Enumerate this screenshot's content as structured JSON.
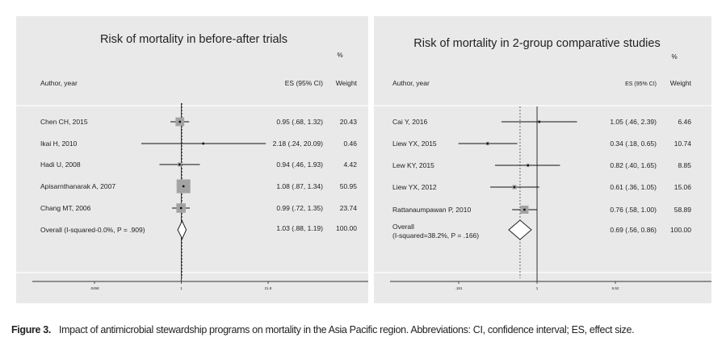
{
  "caption": {
    "label": "Figure 3.",
    "text": "Impact of antimicrobial stewardship programs on mortality in the Asia Pacific region. Abbreviations: CI, confidence interval; ES, effect size."
  },
  "chart_data": [
    {
      "type": "forest",
      "title": "Risk of mortality in before-after trials",
      "columns": {
        "study": "Author, year",
        "es": "ES (95% CI)",
        "weight": "Weight",
        "pct": "%"
      },
      "axis": {
        "scale": "log",
        "ticks": [
          ".0458",
          "1",
          "21.8"
        ],
        "tick_values": [
          0.0458,
          1,
          21.8
        ],
        "null_line": 1
      },
      "studies": [
        {
          "label": "Chen CH, 2015",
          "es": 0.95,
          "lo": 0.68,
          "hi": 1.32,
          "es_text": "0.95 (.68, 1.32)",
          "weight": 20.43,
          "weight_text": "20.43"
        },
        {
          "label": "Ikai H, 2010",
          "es": 2.18,
          "lo": 0.24,
          "hi": 20.09,
          "es_text": "2.18 (.24, 20.09)",
          "weight": 0.46,
          "weight_text": "0.46"
        },
        {
          "label": "Hadi U, 2008",
          "es": 0.94,
          "lo": 0.46,
          "hi": 1.93,
          "es_text": "0.94 (.46, 1.93)",
          "weight": 4.42,
          "weight_text": "4.42"
        },
        {
          "label": "Apisarnthanarak A, 2007",
          "es": 1.08,
          "lo": 0.87,
          "hi": 1.34,
          "es_text": "1.08 (.87, 1.34)",
          "weight": 50.95,
          "weight_text": "50.95"
        },
        {
          "label": "Chang MT, 2006",
          "es": 0.99,
          "lo": 0.72,
          "hi": 1.35,
          "es_text": "0.99 (.72, 1.35)",
          "weight": 23.74,
          "weight_text": "23.74"
        }
      ],
      "overall": {
        "label": "Overall (I-squared-0.0%, P = .909)",
        "label_lines": [
          "Overall (I-squared-0.0%, P = .909)"
        ],
        "es": 1.03,
        "lo": 0.88,
        "hi": 1.19,
        "es_text": "1.03 (.88, 1.19)",
        "weight_text": "100.00"
      }
    },
    {
      "type": "forest",
      "title": "Risk of mortality in 2-group comparative studies",
      "columns": {
        "study": "Author, year",
        "es": "ES (95% CI)",
        "weight": "Weight",
        "pct": "%"
      },
      "axis": {
        "scale": "log",
        "ticks": [
          ".181",
          "1",
          "5.52"
        ],
        "tick_values": [
          0.181,
          1,
          5.52
        ],
        "null_line": 1
      },
      "studies": [
        {
          "label": "Cai Y, 2016",
          "es": 1.05,
          "lo": 0.46,
          "hi": 2.39,
          "es_text": "1.05 (.46, 2.39)",
          "weight": 6.46,
          "weight_text": "6.46"
        },
        {
          "label": "Liew YX, 2015",
          "es": 0.34,
          "lo": 0.18,
          "hi": 0.65,
          "es_text": "0.34 (.18, 0.65)",
          "weight": 10.74,
          "weight_text": "10.74"
        },
        {
          "label": "Lew KY, 2015",
          "es": 0.82,
          "lo": 0.4,
          "hi": 1.65,
          "es_text": "0.82 (.40, 1.65)",
          "weight": 8.85,
          "weight_text": "8.85"
        },
        {
          "label": "Liew YX, 2012",
          "es": 0.61,
          "lo": 0.36,
          "hi": 1.05,
          "es_text": "0.61 (.36, 1.05)",
          "weight": 15.06,
          "weight_text": "15.06"
        },
        {
          "label": "Rattanaumpawan P, 2010",
          "es": 0.76,
          "lo": 0.58,
          "hi": 1.0,
          "es_text": "0.76 (.58, 1.00)",
          "weight": 58.89,
          "weight_text": "58.89"
        }
      ],
      "overall": {
        "label": "Overall (I-squared=38.2%, P = .166)",
        "label_lines": [
          "Overall",
          "(I-squared=38.2%, P = .166)"
        ],
        "es": 0.69,
        "lo": 0.56,
        "hi": 0.86,
        "es_text": "0.69 (.56, 0.86)",
        "weight_text": "100.00"
      }
    }
  ]
}
